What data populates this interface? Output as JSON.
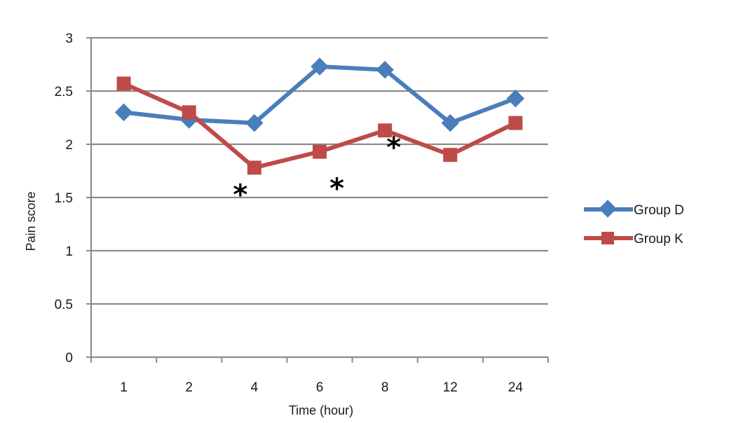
{
  "chart_data": {
    "type": "line",
    "title": "",
    "xlabel": "Time (hour)",
    "ylabel": "Pain score",
    "categories": [
      "1",
      "2",
      "4",
      "6",
      "8",
      "12",
      "24"
    ],
    "ylim": [
      0,
      3
    ],
    "yticks": [
      "0",
      "0.5",
      "1",
      "1.5",
      "2",
      "2.5",
      "3"
    ],
    "grid": true,
    "legend_position": "right",
    "series": [
      {
        "name": "Group D",
        "values": [
          2.3,
          2.23,
          2.2,
          2.73,
          2.7,
          2.2,
          2.43
        ],
        "color": "#4a7ebb",
        "marker": "diamond"
      },
      {
        "name": "Group K",
        "values": [
          2.57,
          2.3,
          1.78,
          1.93,
          2.13,
          1.9,
          2.2
        ],
        "color": "#be4b48",
        "marker": "square"
      }
    ],
    "annotations": [
      {
        "text": "*",
        "category_index": 2,
        "series": "Group K"
      },
      {
        "text": "*",
        "category_index": 3,
        "series": "Group K"
      },
      {
        "text": "*",
        "category_index": 4,
        "series": "Group K"
      }
    ]
  }
}
